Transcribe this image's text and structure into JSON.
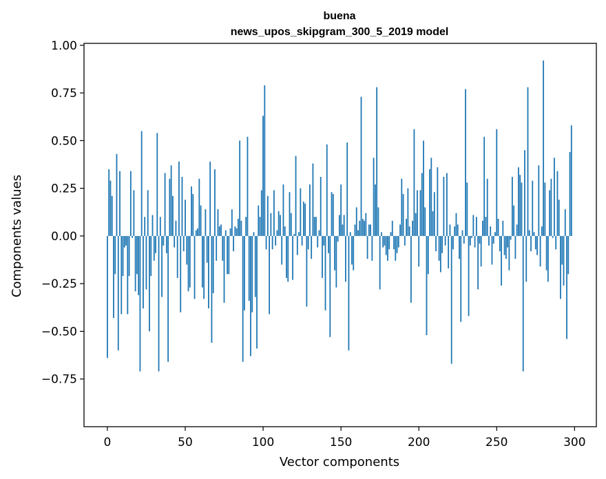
{
  "chart_data": {
    "type": "bar",
    "title": "buena",
    "subtitle": "news_upos_skipgram_300_5_2019 model",
    "xlabel": "Vector components",
    "ylabel": "Components values",
    "xlim": [
      -15,
      314
    ],
    "ylim": [
      -1.0,
      1.01
    ],
    "xticks": [
      0,
      50,
      100,
      150,
      200,
      250,
      300
    ],
    "xtick_labels": [
      "0",
      "50",
      "100",
      "150",
      "200",
      "250",
      "300"
    ],
    "yticks": [
      1.0,
      0.75,
      0.5,
      0.25,
      0.0,
      -0.25,
      -0.5,
      -0.75
    ],
    "ytick_labels": [
      "1.00",
      "0.75",
      "0.50",
      "0.25",
      "0.00",
      "−0.25",
      "−0.50",
      "−0.75"
    ],
    "color": "#1f77b4",
    "grid": false,
    "values": [
      -0.64,
      0.35,
      0.29,
      0.21,
      -0.43,
      -0.2,
      0.43,
      -0.6,
      0.34,
      -0.41,
      -0.21,
      -0.06,
      -0.05,
      -0.41,
      -0.21,
      0.34,
      -0.01,
      0.24,
      -0.29,
      -0.2,
      -0.31,
      -0.71,
      0.55,
      -0.38,
      0.1,
      -0.28,
      0.24,
      -0.5,
      -0.21,
      0.11,
      -0.13,
      -0.09,
      0.54,
      -0.71,
      0.1,
      -0.32,
      -0.05,
      0.33,
      -0.09,
      -0.66,
      0.3,
      0.37,
      0.21,
      -0.06,
      0.08,
      -0.22,
      0.39,
      -0.4,
      0.31,
      -0.08,
      0.19,
      -0.15,
      -0.29,
      -0.27,
      0.26,
      0.22,
      -0.33,
      0.03,
      0.04,
      0.3,
      0.16,
      -0.27,
      -0.33,
      0.14,
      -0.14,
      -0.38,
      0.39,
      -0.56,
      -0.3,
      0.35,
      -0.13,
      0.14,
      0.05,
      0.06,
      -0.13,
      -0.35,
      0.03,
      -0.2,
      -0.2,
      0.04,
      0.14,
      -0.08,
      0.05,
      0.04,
      0.09,
      0.5,
      0.08,
      -0.66,
      -0.39,
      0.1,
      0.52,
      -0.34,
      -0.63,
      -0.4,
      0.02,
      -0.32,
      -0.59,
      0.16,
      0.1,
      0.24,
      0.63,
      0.79,
      -0.07,
      0.21,
      -0.41,
      0.12,
      -0.07,
      0.24,
      -0.05,
      0.03,
      0.13,
      0.11,
      -0.15,
      0.27,
      0.05,
      -0.22,
      -0.24,
      0.23,
      0.12,
      -0.23,
      0.01,
      0.42,
      -0.1,
      0.02,
      0.25,
      -0.05,
      0.18,
      0.17,
      -0.37,
      -0.07,
      0.27,
      -0.12,
      0.38,
      0.1,
      0.1,
      -0.06,
      0.03,
      0.31,
      -0.22,
      -0.05,
      -0.39,
      0.48,
      -0.09,
      -0.53,
      0.23,
      0.22,
      -0.18,
      -0.27,
      -0.03,
      0.11,
      0.27,
      0.06,
      0.11,
      -0.24,
      0.49,
      -0.6,
      0.02,
      -0.15,
      -0.18,
      0.06,
      0.15,
      0.03,
      0.08,
      0.73,
      0.09,
      0.08,
      0.12,
      -0.12,
      0.06,
      0.06,
      -0.13,
      0.41,
      0.27,
      0.78,
      0.15,
      -0.28,
      0.02,
      -0.06,
      -0.05,
      -0.1,
      -0.13,
      -0.07,
      0.02,
      0.08,
      -0.07,
      -0.13,
      -0.09,
      -0.06,
      0.06,
      0.3,
      0.22,
      -0.05,
      0.09,
      0.25,
      0.05,
      -0.35,
      0.08,
      0.56,
      0.12,
      0.24,
      -0.16,
      0.24,
      0.33,
      0.5,
      0.15,
      -0.52,
      -0.2,
      0.35,
      0.41,
      0.13,
      0.23,
      -0.08,
      0.36,
      -0.13,
      -0.19,
      -0.09,
      0.31,
      -0.05,
      0.33,
      -0.17,
      0.06,
      -0.67,
      -0.07,
      0.05,
      0.12,
      0.06,
      -0.12,
      -0.45,
      0.03,
      -0.04,
      0.77,
      0.28,
      -0.42,
      -0.05,
      -0.01,
      0.11,
      -0.06,
      0.1,
      -0.28,
      -0.04,
      -0.16,
      0.08,
      0.52,
      0.1,
      0.3,
      -0.05,
      0.05,
      -0.15,
      -0.04,
      0.02,
      0.56,
      0.09,
      -0.08,
      -0.26,
      0.08,
      -0.1,
      -0.12,
      -0.06,
      -0.18,
      -0.02,
      0.31,
      0.16,
      -0.12,
      0.06,
      0.36,
      0.32,
      0.28,
      -0.71,
      0.45,
      -0.24,
      0.78,
      0.03,
      -0.08,
      0.29,
      0.02,
      -0.07,
      -0.1,
      0.37,
      -0.16,
      0.05,
      0.92,
      0.28,
      -0.18,
      -0.24,
      0.24,
      0.3,
      -0.01,
      0.41,
      -0.07,
      0.34,
      0.19,
      -0.33,
      -0.15,
      -0.26,
      0.14,
      -0.54,
      -0.2,
      0.44,
      0.58
    ]
  }
}
